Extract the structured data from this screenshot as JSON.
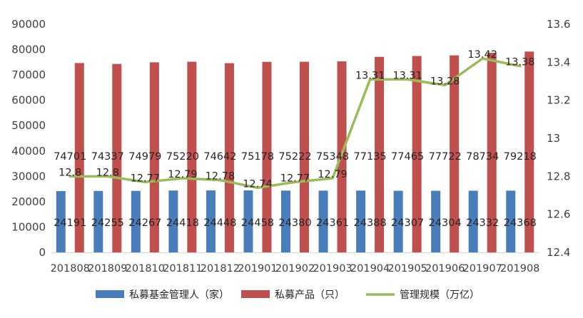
{
  "chart_data": {
    "type": "bar",
    "categories": [
      "201808",
      "201809",
      "201810",
      "201811",
      "201812",
      "201901",
      "201902",
      "201903",
      "201904",
      "201905",
      "201906",
      "201907",
      "201908"
    ],
    "series": [
      {
        "name": "私募基金管理人（家）",
        "type": "bar",
        "axis": "left",
        "color": "#4a7ebb",
        "values": [
          24191,
          24255,
          24267,
          24418,
          24448,
          24458,
          24380,
          24361,
          24388,
          24307,
          24304,
          24332,
          24368
        ],
        "labels": [
          "24191",
          "24255",
          "24267",
          "24418",
          "24448",
          "24458",
          "24380",
          "24361",
          "24388",
          "24307",
          "24304",
          "24332",
          "24368"
        ]
      },
      {
        "name": "私募产品（只）",
        "type": "bar",
        "axis": "left",
        "color": "#c0504d",
        "values": [
          74701,
          74337,
          74979,
          75220,
          74642,
          75178,
          75222,
          75348,
          77135,
          77465,
          77722,
          78734,
          79218
        ],
        "labels": [
          "74701",
          "74337",
          "74979",
          "75220",
          "74642",
          "75178",
          "75222",
          "75348",
          "77135",
          "77465",
          "77722",
          "78734",
          "79218"
        ]
      },
      {
        "name": "管理规模（万亿）",
        "type": "line",
        "axis": "right",
        "color": "#9bbb59",
        "values": [
          12.8,
          12.8,
          12.77,
          12.79,
          12.78,
          12.74,
          12.77,
          12.79,
          13.31,
          13.31,
          13.28,
          13.42,
          13.38
        ],
        "labels": [
          "12.8",
          "12.8",
          "12.77",
          "12.79",
          "12.78",
          "12.74",
          "12.77",
          "12.79",
          "13.31",
          "13.31",
          "13.28",
          "13.42",
          "13.38"
        ]
      }
    ],
    "y_left": {
      "min": 0,
      "max": 90000,
      "ticks": [
        "0",
        "10000",
        "20000",
        "30000",
        "40000",
        "50000",
        "60000",
        "70000",
        "80000",
        "90000"
      ]
    },
    "y_right": {
      "min": 12.4,
      "max": 13.6,
      "ticks": [
        "12.4",
        "12.6",
        "12.8",
        "13",
        "13.2",
        "13.4",
        "13.6"
      ]
    },
    "title": "",
    "xlabel": "",
    "ylabel": "",
    "grid": false,
    "legend_position": "bottom"
  }
}
